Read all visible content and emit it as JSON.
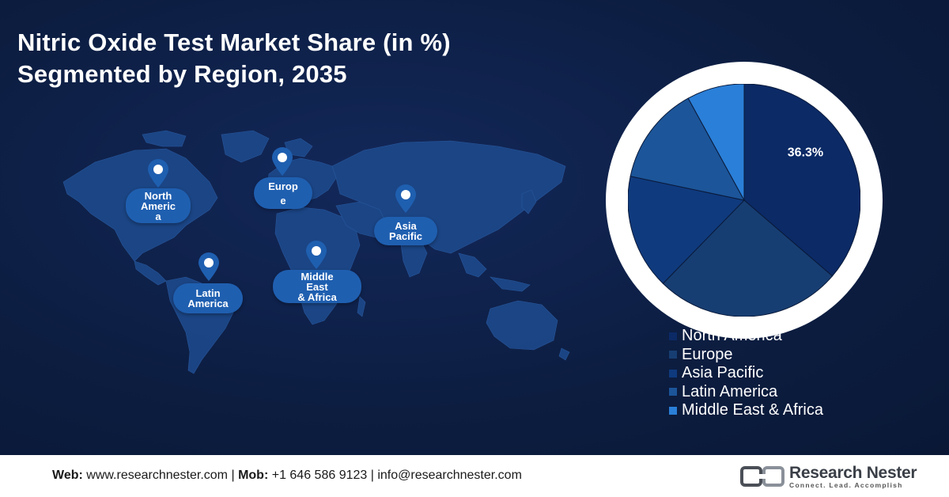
{
  "title": {
    "line1": "Nitric Oxide Test Market Share (in %)",
    "line2": "Segmented by Region, 2035"
  },
  "map_labels": [
    {
      "id": "north-america",
      "lines": [
        "North",
        "Americ",
        "a"
      ]
    },
    {
      "id": "europe",
      "lines": [
        "Europ",
        "e"
      ]
    },
    {
      "id": "asia-pacific",
      "lines": [
        "Asia",
        "Pacific"
      ]
    },
    {
      "id": "latin-america",
      "lines": [
        "Latin",
        "America"
      ]
    },
    {
      "id": "middle-east-africa",
      "lines": [
        "Middle",
        "East",
        "& Africa"
      ]
    }
  ],
  "chart_data": {
    "type": "pie",
    "title": "Nitric Oxide Test Market Share (in %) Segmented by Region, 2035",
    "categories": [
      "North America",
      "Europe",
      "Asia Pacific",
      "Latin America",
      "Middle East & Africa"
    ],
    "values": [
      36.3,
      26.0,
      16.0,
      13.7,
      8.0
    ],
    "data_labels": [
      "36.3%",
      "",
      "",
      "",
      ""
    ],
    "colors": [
      "#0b2a66",
      "#173e72",
      "#0f3a7e",
      "#1c5599",
      "#2a7fd8"
    ],
    "legend_position": "bottom-right"
  },
  "footer": {
    "web_label": "Web:",
    "web_value": "www.researchnester.com",
    "mob_label": "Mob:",
    "mob_value": "+1 646 586 9123",
    "email_value": "info@researchnester.com",
    "sep": "|"
  },
  "logo": {
    "name": "Research Nester",
    "tagline": "Connect. Lead. Accomplish"
  }
}
